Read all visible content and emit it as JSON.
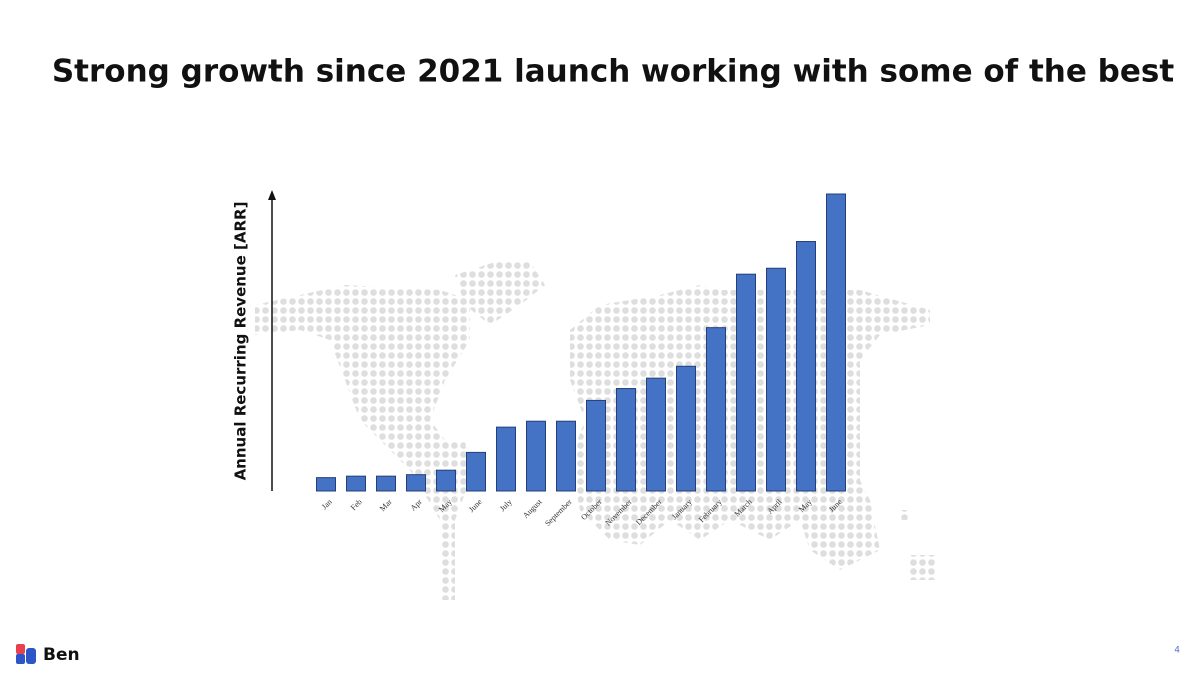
{
  "chart_data": {
    "type": "bar",
    "title": "Strong growth since 2021 launch working with some of the best",
    "y_label": "Annual Recurring Revenue [ARR]",
    "categories": [
      "Jan",
      "Feb",
      "Mar",
      "Apr",
      "May",
      "June",
      "July",
      "August",
      "September",
      "October",
      "November",
      "December",
      "January",
      "February",
      "March",
      "April",
      "May",
      "June"
    ],
    "values": [
      4.5,
      5,
      5,
      5.5,
      7,
      13,
      21.5,
      23.5,
      23.5,
      30.5,
      34.5,
      38,
      42,
      55,
      73,
      75,
      84,
      100
    ],
    "color": "#4472c4",
    "ylim": [
      0,
      100
    ]
  },
  "footer": {
    "brand": "Ben",
    "page_number": "4"
  }
}
